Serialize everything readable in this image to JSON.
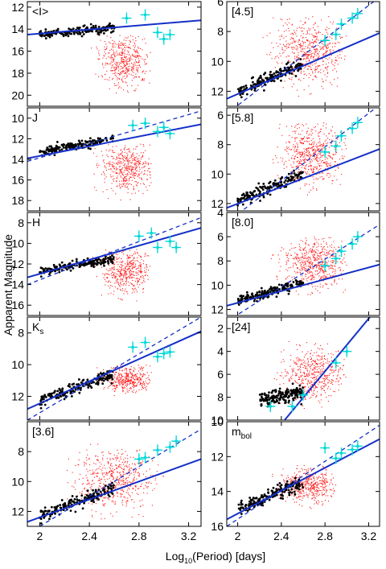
{
  "figure": {
    "ylabel": "Apparent Magnitude",
    "xlabel": "Log10(Period) [days]",
    "xlabel_main": "Log",
    "xlabel_sub": "10",
    "xlabel_rest": "(Period) [days]"
  },
  "chart_data": [
    {
      "type": "scatter",
      "label": "<I>",
      "label_sub": "",
      "xlim": [
        1.9,
        3.3
      ],
      "ylim": [
        11.5,
        21
      ],
      "y_inverted": true,
      "yticks": [
        12,
        14,
        16,
        18,
        20
      ],
      "xticks": [],
      "fit_solid": {
        "x": [
          1.9,
          3.3
        ],
        "y": [
          14.5,
          13.2
        ]
      },
      "fit_dashed": null,
      "clouds": [
        {
          "color": "red",
          "n": 450,
          "x": [
            2.4,
            2.9
          ],
          "y": [
            14.5,
            20.5
          ],
          "center": [
            2.68,
            16.8
          ]
        }
      ],
      "seq": {
        "x": [
          2.0,
          2.6
        ],
        "y": [
          14.5,
          13.8
        ],
        "spread": 0.4
      },
      "ext": [
        {
          "x": 2.7,
          "y": 13.0
        },
        {
          "x": 2.85,
          "y": 12.7
        },
        {
          "x": 2.95,
          "y": 14.3
        },
        {
          "x": 3.0,
          "y": 14.9
        },
        {
          "x": 3.05,
          "y": 14.5
        }
      ]
    },
    {
      "type": "scatter",
      "label": "[4.5]",
      "label_sub": "",
      "xlim": [
        1.9,
        3.3
      ],
      "ylim": [
        6,
        13
      ],
      "y_inverted": true,
      "yticks": [
        6,
        8,
        10,
        12
      ],
      "xticks": [],
      "fit_solid": {
        "x": [
          1.9,
          3.3
        ],
        "y": [
          12.5,
          8.1
        ]
      },
      "fit_dashed": {
        "x": [
          1.9,
          3.3
        ],
        "y": [
          13.5,
          5.7
        ]
      },
      "clouds": [
        {
          "color": "red",
          "n": 550,
          "x": [
            2.2,
            3.0
          ],
          "y": [
            7,
            12.5
          ],
          "center": [
            2.65,
            9.3
          ]
        }
      ],
      "seq": {
        "x": [
          2.0,
          2.6
        ],
        "y": [
          12.0,
          10.2
        ],
        "spread": 0.4
      },
      "ext": [
        {
          "x": 2.8,
          "y": 8.6
        },
        {
          "x": 2.9,
          "y": 8.2
        },
        {
          "x": 2.95,
          "y": 7.5
        },
        {
          "x": 3.05,
          "y": 7.1
        },
        {
          "x": 3.1,
          "y": 6.8
        }
      ]
    },
    {
      "type": "scatter",
      "label": "J",
      "label_sub": "",
      "xlim": [
        1.9,
        3.3
      ],
      "ylim": [
        9,
        19
      ],
      "y_inverted": true,
      "yticks": [
        10,
        12,
        14,
        16,
        18
      ],
      "xticks": [],
      "fit_solid": {
        "x": [
          1.9,
          3.3
        ],
        "y": [
          13.9,
          10.6
        ]
      },
      "fit_dashed": {
        "x": [
          1.9,
          3.3
        ],
        "y": [
          14.2,
          9.3
        ]
      },
      "clouds": [
        {
          "color": "red",
          "n": 450,
          "x": [
            2.4,
            2.9
          ],
          "y": [
            12.5,
            18.5
          ],
          "center": [
            2.7,
            14.8
          ]
        }
      ],
      "seq": {
        "x": [
          2.0,
          2.6
        ],
        "y": [
          13.3,
          12.0
        ],
        "spread": 0.4
      },
      "ext": [
        {
          "x": 2.75,
          "y": 10.7
        },
        {
          "x": 2.85,
          "y": 10.5
        },
        {
          "x": 2.95,
          "y": 11.3
        },
        {
          "x": 3.0,
          "y": 10.9
        },
        {
          "x": 3.05,
          "y": 11.5
        }
      ]
    },
    {
      "type": "scatter",
      "label": "[5.8]",
      "label_sub": "",
      "xlim": [
        1.9,
        3.3
      ],
      "ylim": [
        5.5,
        12.5
      ],
      "y_inverted": true,
      "yticks": [
        6,
        8,
        10,
        12
      ],
      "xticks": [],
      "fit_solid": {
        "x": [
          1.9,
          3.3
        ],
        "y": [
          12.3,
          8.3
        ]
      },
      "fit_dashed": {
        "x": [
          1.9,
          3.3
        ],
        "y": [
          13.3,
          5.3
        ]
      },
      "clouds": [
        {
          "color": "red",
          "n": 550,
          "x": [
            2.3,
            3.0
          ],
          "y": [
            6.5,
            11.5
          ],
          "center": [
            2.68,
            8.6
          ]
        }
      ],
      "seq": {
        "x": [
          2.0,
          2.6
        ],
        "y": [
          11.8,
          10.0
        ],
        "spread": 0.4
      },
      "ext": [
        {
          "x": 2.8,
          "y": 8.5
        },
        {
          "x": 2.9,
          "y": 8.1
        },
        {
          "x": 2.95,
          "y": 7.4
        },
        {
          "x": 3.05,
          "y": 6.9
        },
        {
          "x": 3.1,
          "y": 6.5
        }
      ]
    },
    {
      "type": "scatter",
      "label": "H",
      "label_sub": "",
      "xlim": [
        1.9,
        3.3
      ],
      "ylim": [
        7,
        17
      ],
      "y_inverted": true,
      "yticks": [
        8,
        10,
        12,
        14,
        16
      ],
      "xticks": [],
      "fit_solid": {
        "x": [
          1.9,
          3.3
        ],
        "y": [
          13.3,
          8.5
        ]
      },
      "fit_dashed": {
        "x": [
          1.9,
          3.3
        ],
        "y": [
          14.0,
          7.5
        ]
      },
      "clouds": [
        {
          "color": "red",
          "n": 450,
          "x": [
            2.4,
            2.9
          ],
          "y": [
            10.5,
            16
          ],
          "center": [
            2.7,
            12.6
          ]
        }
      ],
      "seq": {
        "x": [
          2.0,
          2.6
        ],
        "y": [
          12.7,
          11.5
        ],
        "spread": 0.4
      },
      "ext": [
        {
          "x": 2.8,
          "y": 9.3
        },
        {
          "x": 2.9,
          "y": 9.0
        },
        {
          "x": 2.95,
          "y": 10.4
        },
        {
          "x": 3.05,
          "y": 9.8
        },
        {
          "x": 3.1,
          "y": 10.4
        }
      ]
    },
    {
      "type": "scatter",
      "label": "[8.0]",
      "label_sub": "",
      "xlim": [
        1.9,
        3.3
      ],
      "ylim": [
        4,
        12.5
      ],
      "y_inverted": true,
      "yticks": [
        4,
        6,
        8,
        10,
        12
      ],
      "xticks": [],
      "fit_solid": {
        "x": [
          1.9,
          3.3
        ],
        "y": [
          11.7,
          8.3
        ]
      },
      "fit_dashed": {
        "x": [
          1.9,
          3.3
        ],
        "y": [
          13.0,
          5.0
        ]
      },
      "clouds": [
        {
          "color": "red",
          "n": 550,
          "x": [
            2.3,
            3.0
          ],
          "y": [
            6,
            11
          ],
          "center": [
            2.7,
            8.2
          ]
        }
      ],
      "seq": {
        "x": [
          2.0,
          2.6
        ],
        "y": [
          11.3,
          9.8
        ],
        "spread": 0.4
      },
      "ext": [
        {
          "x": 2.8,
          "y": 8.4
        },
        {
          "x": 2.9,
          "y": 7.8
        },
        {
          "x": 2.95,
          "y": 7.2
        },
        {
          "x": 3.05,
          "y": 6.6
        },
        {
          "x": 3.1,
          "y": 6.0
        }
      ]
    },
    {
      "type": "scatter",
      "label": "K",
      "label_sub": "s",
      "xlim": [
        1.9,
        3.3
      ],
      "ylim": [
        7,
        13.5
      ],
      "y_inverted": true,
      "yticks": [
        8,
        10,
        12
      ],
      "xticks": [],
      "fit_solid": {
        "x": [
          1.9,
          3.3
        ],
        "y": [
          12.8,
          7.9
        ]
      },
      "fit_dashed": {
        "x": [
          1.9,
          3.3
        ],
        "y": [
          13.5,
          7.0
        ]
      },
      "clouds": [
        {
          "color": "red",
          "n": 400,
          "x": [
            2.4,
            2.9
          ],
          "y": [
            10,
            12
          ],
          "center": [
            2.7,
            10.9
          ]
        }
      ],
      "seq": {
        "x": [
          2.0,
          2.6
        ],
        "y": [
          12.3,
          10.6
        ],
        "spread": 0.4
      },
      "ext": [
        {
          "x": 2.75,
          "y": 8.9
        },
        {
          "x": 2.85,
          "y": 8.6
        },
        {
          "x": 2.95,
          "y": 9.5
        },
        {
          "x": 3.0,
          "y": 9.3
        },
        {
          "x": 3.05,
          "y": 9.2
        }
      ]
    },
    {
      "type": "scatter",
      "label": "[24]",
      "label_sub": "",
      "xlim": [
        1.9,
        3.3
      ],
      "ylim": [
        1,
        10
      ],
      "y_inverted": true,
      "yticks": [
        2,
        4,
        6,
        8,
        10
      ],
      "xticks": [],
      "fit_solid": {
        "x": [
          2.43,
          3.22
        ],
        "y": [
          10.0,
          0.9
        ]
      },
      "fit_dashed": null,
      "clouds": [
        {
          "color": "red",
          "n": 500,
          "x": [
            2.3,
            3.0
          ],
          "y": [
            3,
            9
          ],
          "center": [
            2.68,
            6.0
          ]
        }
      ],
      "seq": {
        "x": [
          2.2,
          2.6
        ],
        "y": [
          8.2,
          7.6
        ],
        "spread": 0.6
      },
      "ext": [
        {
          "x": 2.3,
          "y": 8.8
        },
        {
          "x": 2.5,
          "y": 8.8
        },
        {
          "x": 2.6,
          "y": 7.8
        },
        {
          "x": 2.9,
          "y": 5.0
        },
        {
          "x": 3.0,
          "y": 4.0
        }
      ]
    },
    {
      "type": "scatter",
      "label": "[3.6]",
      "label_sub": "",
      "xlim": [
        1.9,
        3.3
      ],
      "ylim": [
        6,
        13
      ],
      "y_inverted": true,
      "yticks": [
        8,
        10,
        12
      ],
      "xticks": [
        "2",
        "2.4",
        "2.8",
        "3.2"
      ],
      "fit_solid": {
        "x": [
          1.9,
          3.3
        ],
        "y": [
          12.7,
          8.5
        ]
      },
      "fit_dashed": {
        "x": [
          1.9,
          3.3
        ],
        "y": [
          13.5,
          6.5
        ]
      },
      "clouds": [
        {
          "color": "red",
          "n": 550,
          "x": [
            2.2,
            3.0
          ],
          "y": [
            7.5,
            12.5
          ],
          "center": [
            2.6,
            9.9
          ]
        }
      ],
      "seq": {
        "x": [
          2.0,
          2.6
        ],
        "y": [
          12.3,
          10.4
        ],
        "spread": 0.4
      },
      "ext": [
        {
          "x": 2.8,
          "y": 8.5
        },
        {
          "x": 2.85,
          "y": 8.4
        },
        {
          "x": 2.95,
          "y": 7.9
        },
        {
          "x": 3.05,
          "y": 7.7
        },
        {
          "x": 3.1,
          "y": 7.3
        }
      ]
    },
    {
      "type": "scatter",
      "label": "m",
      "label_sub": "bol",
      "xlim": [
        1.9,
        3.3
      ],
      "ylim": [
        10,
        16
      ],
      "y_inverted": true,
      "yticks": [
        10,
        12,
        14,
        16
      ],
      "xticks": [
        "2",
        "2.4",
        "2.8",
        "3.2"
      ],
      "fit_solid": {
        "x": [
          1.9,
          3.3
        ],
        "y": [
          15.6,
          11.0
        ]
      },
      "fit_dashed": {
        "x": [
          1.9,
          3.3
        ],
        "y": [
          16.0,
          10.2
        ]
      },
      "clouds": [
        {
          "color": "red",
          "n": 450,
          "x": [
            2.3,
            2.9
          ],
          "y": [
            12.5,
            15
          ],
          "center": [
            2.65,
            13.6
          ]
        }
      ],
      "seq": {
        "x": [
          2.0,
          2.6
        ],
        "y": [
          15.0,
          13.5
        ],
        "spread": 0.4
      },
      "ext": [
        {
          "x": 2.8,
          "y": 11.5
        },
        {
          "x": 2.9,
          "y": 12.1
        },
        {
          "x": 2.95,
          "y": 11.8
        },
        {
          "x": 3.05,
          "y": 11.6
        },
        {
          "x": 3.1,
          "y": 11.4
        }
      ]
    }
  ],
  "colors": {
    "fit": "#1530c8",
    "ogle": "#ff1a1a",
    "sequence": "#000000",
    "extreme": "#00d8d8",
    "axis": "#000000"
  }
}
